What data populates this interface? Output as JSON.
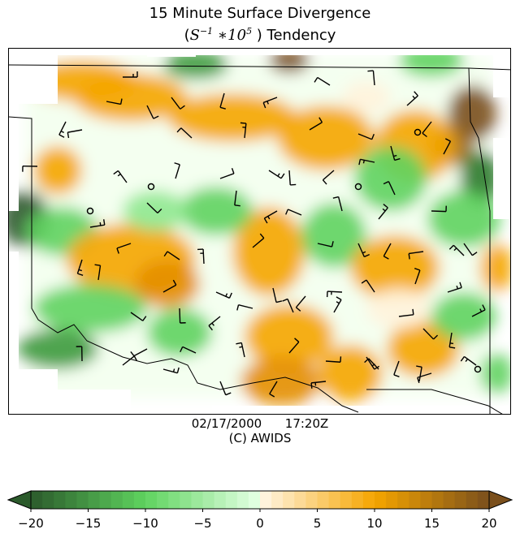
{
  "title": {
    "line1": "15 Minute Surface Divergence",
    "line2_prefix": "(",
    "line2_math_base": "S",
    "line2_math_exp1": "−1",
    "line2_math_mid": " ∗10",
    "line2_math_exp2": "5",
    "line2_suffix": " ) Tendency"
  },
  "footer": {
    "date": "02/17/2000",
    "time": "17:20Z",
    "credit": "(C) AWIDS"
  },
  "colorbar": {
    "ticks": [
      "−20",
      "−15",
      "−10",
      "−5",
      "0",
      "5",
      "10",
      "15",
      "20"
    ],
    "min": -20,
    "max": 20,
    "colors": {
      "dark_green": "#2b5a2b",
      "mid_green": "#5fd35f",
      "light_green": "#dfffdf",
      "cream": "#fff3dc",
      "orange": "#f5a500",
      "brown": "#7a4f1c"
    }
  }
}
